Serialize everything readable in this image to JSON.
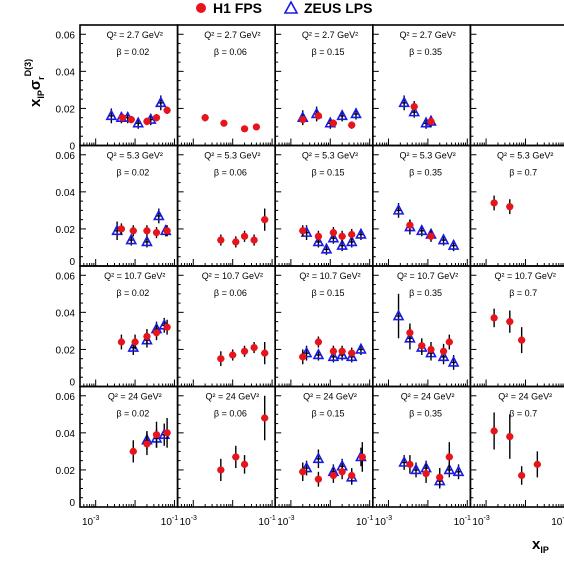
{
  "chart_data": {
    "type": "scatter",
    "legend": [
      {
        "name": "H1 FPS",
        "marker": "filled-circle",
        "color": "#e8141c"
      },
      {
        "name": "ZEUS LPS",
        "marker": "open-triangle",
        "color": "#1a1ae6"
      }
    ],
    "legend_placement": "top-center",
    "ylabel": {
      "main": "x",
      "sub1": "IP",
      "sigma": "σ",
      "sub2": "r",
      "sup": "D(3)"
    },
    "xlabel": {
      "main": "x",
      "sub": "IP"
    },
    "xscale": "log",
    "xlim": [
      0.0004,
      0.12
    ],
    "ylim": [
      0,
      0.065
    ],
    "yticks": [
      "0",
      "0.02",
      "0.04",
      "0.06"
    ],
    "xticks": [
      {
        "base": "10",
        "exp": "-3"
      },
      {
        "base": "10",
        "exp": "-1"
      }
    ],
    "grid": false,
    "rows": [
      {
        "q2_label": "Q² = 2.7 GeV²",
        "panels": [
          {
            "beta_label": "β = 0.02",
            "h1": [
              [
                0.0048,
                0.015,
                0.002
              ],
              [
                0.008,
                0.014,
                0.002
              ],
              [
                0.02,
                0.013,
                0.002
              ],
              [
                0.035,
                0.015,
                0.002
              ],
              [
                0.065,
                0.019,
                0.002
              ]
            ],
            "zeus": [
              [
                0.0025,
                0.016,
                0.004
              ],
              [
                0.0045,
                0.015,
                0.003
              ],
              [
                0.0065,
                0.015,
                0.003
              ],
              [
                0.012,
                0.012,
                0.003
              ],
              [
                0.025,
                0.014,
                0.003
              ],
              [
                0.045,
                0.023,
                0.004
              ]
            ]
          },
          {
            "beta_label": "β = 0.06",
            "h1": [
              [
                0.002,
                0.015,
                0.002
              ],
              [
                0.006,
                0.012,
                0.0015
              ],
              [
                0.02,
                0.009,
                0.0015
              ],
              [
                0.04,
                0.01,
                0.0015
              ]
            ],
            "zeus": []
          },
          {
            "beta_label": "β = 0.15",
            "h1": [
              [
                0.002,
                0.014,
                0.002
              ],
              [
                0.005,
                0.016,
                0.002
              ],
              [
                0.012,
                0.012,
                0.002
              ],
              [
                0.035,
                0.011,
                0.002
              ]
            ],
            "zeus": [
              [
                0.002,
                0.015,
                0.004
              ],
              [
                0.0045,
                0.017,
                0.004
              ],
              [
                0.01,
                0.012,
                0.003
              ],
              [
                0.02,
                0.016,
                0.003
              ],
              [
                0.045,
                0.017,
                0.003
              ]
            ]
          },
          {
            "beta_label": "β = 0.35",
            "h1": [
              [
                0.0045,
                0.021,
                0.003
              ],
              [
                0.012,
                0.013,
                0.002
              ]
            ],
            "zeus": [
              [
                0.0025,
                0.023,
                0.004
              ],
              [
                0.0045,
                0.018,
                0.003
              ],
              [
                0.009,
                0.012,
                0.003
              ],
              [
                0.012,
                0.013,
                0.003
              ]
            ]
          },
          {
            "beta_label": null,
            "h1": [],
            "zeus": []
          }
        ]
      },
      {
        "q2_label": "Q² = 5.3 GeV²",
        "panels": [
          {
            "beta_label": "β = 0.02",
            "h1": [
              [
                0.0045,
                0.02,
                0.003
              ],
              [
                0.009,
                0.019,
                0.003
              ],
              [
                0.02,
                0.019,
                0.003
              ],
              [
                0.035,
                0.018,
                0.003
              ],
              [
                0.065,
                0.019,
                0.003
              ]
            ],
            "zeus": [
              [
                0.0035,
                0.019,
                0.005
              ],
              [
                0.008,
                0.014,
                0.003
              ],
              [
                0.02,
                0.013,
                0.003
              ],
              [
                0.04,
                0.027,
                0.004
              ],
              [
                0.06,
                0.019,
                0.003
              ]
            ]
          },
          {
            "beta_label": "β = 0.06",
            "h1": [
              [
                0.005,
                0.014,
                0.003
              ],
              [
                0.012,
                0.013,
                0.003
              ],
              [
                0.02,
                0.016,
                0.003
              ],
              [
                0.035,
                0.014,
                0.003
              ],
              [
                0.065,
                0.025,
                0.006
              ]
            ],
            "zeus": []
          },
          {
            "beta_label": "β = 0.15",
            "h1": [
              [
                0.002,
                0.019,
                0.003
              ],
              [
                0.005,
                0.016,
                0.003
              ],
              [
                0.012,
                0.018,
                0.003
              ],
              [
                0.02,
                0.016,
                0.003
              ],
              [
                0.035,
                0.017,
                0.003
              ]
            ],
            "zeus": [
              [
                0.0025,
                0.018,
                0.004
              ],
              [
                0.005,
                0.013,
                0.003
              ],
              [
                0.008,
                0.009,
                0.003
              ],
              [
                0.012,
                0.015,
                0.003
              ],
              [
                0.02,
                0.011,
                0.003
              ],
              [
                0.035,
                0.013,
                0.003
              ],
              [
                0.06,
                0.017,
                0.003
              ]
            ]
          },
          {
            "beta_label": "β = 0.35",
            "h1": [
              [
                0.0035,
                0.022,
                0.003
              ],
              [
                0.012,
                0.016,
                0.003
              ]
            ],
            "zeus": [
              [
                0.0018,
                0.03,
                0.004
              ],
              [
                0.0035,
                0.021,
                0.004
              ],
              [
                0.007,
                0.019,
                0.003
              ],
              [
                0.012,
                0.017,
                0.003
              ],
              [
                0.025,
                0.014,
                0.003
              ],
              [
                0.045,
                0.011,
                0.003
              ]
            ]
          },
          {
            "beta_label": "β = 0.7",
            "h1": [
              [
                0.0016,
                0.034,
                0.004
              ],
              [
                0.004,
                0.032,
                0.004
              ]
            ],
            "zeus": []
          }
        ]
      },
      {
        "q2_label": "Q² = 10.7 GeV²",
        "panels": [
          {
            "beta_label": "β = 0.02",
            "h1": [
              [
                0.0045,
                0.024,
                0.004
              ],
              [
                0.01,
                0.024,
                0.004
              ],
              [
                0.02,
                0.027,
                0.004
              ],
              [
                0.035,
                0.029,
                0.004
              ],
              [
                0.065,
                0.032,
                0.004
              ]
            ],
            "zeus": [
              [
                0.009,
                0.021,
                0.004
              ],
              [
                0.02,
                0.025,
                0.004
              ],
              [
                0.035,
                0.031,
                0.004
              ],
              [
                0.055,
                0.033,
                0.004
              ]
            ]
          },
          {
            "beta_label": "β = 0.06",
            "h1": [
              [
                0.005,
                0.015,
                0.004
              ],
              [
                0.01,
                0.017,
                0.003
              ],
              [
                0.02,
                0.019,
                0.003
              ],
              [
                0.035,
                0.021,
                0.003
              ],
              [
                0.065,
                0.018,
                0.006
              ]
            ],
            "zeus": []
          },
          {
            "beta_label": "β = 0.15",
            "h1": [
              [
                0.002,
                0.016,
                0.004
              ],
              [
                0.005,
                0.024,
                0.003
              ],
              [
                0.012,
                0.019,
                0.003
              ],
              [
                0.02,
                0.019,
                0.003
              ],
              [
                0.035,
                0.018,
                0.003
              ]
            ],
            "zeus": [
              [
                0.0025,
                0.018,
                0.004
              ],
              [
                0.005,
                0.017,
                0.003
              ],
              [
                0.012,
                0.016,
                0.003
              ],
              [
                0.02,
                0.017,
                0.003
              ],
              [
                0.035,
                0.016,
                0.003
              ],
              [
                0.06,
                0.02,
                0.003
              ]
            ]
          },
          {
            "beta_label": "β = 0.35",
            "h1": [
              [
                0.0035,
                0.029,
                0.005
              ],
              [
                0.007,
                0.022,
                0.004
              ],
              [
                0.012,
                0.02,
                0.004
              ],
              [
                0.025,
                0.019,
                0.004
              ],
              [
                0.035,
                0.024,
                0.004
              ]
            ],
            "zeus": [
              [
                0.0018,
                0.038,
                0.012
              ],
              [
                0.0035,
                0.026,
                0.006
              ],
              [
                0.007,
                0.021,
                0.004
              ],
              [
                0.012,
                0.018,
                0.004
              ],
              [
                0.025,
                0.016,
                0.004
              ],
              [
                0.045,
                0.013,
                0.004
              ]
            ]
          },
          {
            "beta_label": "β = 0.7",
            "h1": [
              [
                0.0016,
                0.037,
                0.005
              ],
              [
                0.004,
                0.035,
                0.006
              ],
              [
                0.008,
                0.025,
                0.007
              ]
            ],
            "zeus": []
          }
        ]
      },
      {
        "q2_label": "Q² = 24 GeV²",
        "panels": [
          {
            "beta_label": "β = 0.02",
            "h1": [
              [
                0.009,
                0.03,
                0.006
              ],
              [
                0.02,
                0.034,
                0.006
              ],
              [
                0.035,
                0.039,
                0.007
              ],
              [
                0.065,
                0.04,
                0.008
              ]
            ],
            "zeus": [
              [
                0.02,
                0.036,
                0.005
              ],
              [
                0.035,
                0.037,
                0.005
              ],
              [
                0.055,
                0.039,
                0.006
              ]
            ]
          },
          {
            "beta_label": "β = 0.06",
            "h1": [
              [
                0.005,
                0.02,
                0.006
              ],
              [
                0.012,
                0.027,
                0.006
              ],
              [
                0.02,
                0.023,
                0.005
              ],
              [
                0.065,
                0.048,
                0.012
              ]
            ],
            "zeus": []
          },
          {
            "beta_label": "β = 0.15",
            "h1": [
              [
                0.002,
                0.019,
                0.005
              ],
              [
                0.005,
                0.015,
                0.004
              ],
              [
                0.012,
                0.017,
                0.004
              ],
              [
                0.02,
                0.019,
                0.004
              ],
              [
                0.035,
                0.017,
                0.004
              ],
              [
                0.065,
                0.027,
                0.008
              ]
            ],
            "zeus": [
              [
                0.0025,
                0.021,
                0.004
              ],
              [
                0.005,
                0.026,
                0.005
              ],
              [
                0.012,
                0.019,
                0.004
              ],
              [
                0.02,
                0.022,
                0.004
              ],
              [
                0.035,
                0.016,
                0.004
              ],
              [
                0.06,
                0.027,
                0.005
              ]
            ]
          },
          {
            "beta_label": "β = 0.35",
            "h1": [
              [
                0.0035,
                0.023,
                0.005
              ],
              [
                0.009,
                0.018,
                0.005
              ],
              [
                0.02,
                0.016,
                0.005
              ],
              [
                0.035,
                0.027,
                0.008
              ]
            ],
            "zeus": [
              [
                0.0025,
                0.024,
                0.004
              ],
              [
                0.005,
                0.02,
                0.004
              ],
              [
                0.009,
                0.021,
                0.004
              ],
              [
                0.02,
                0.014,
                0.004
              ],
              [
                0.035,
                0.02,
                0.004
              ],
              [
                0.06,
                0.019,
                0.004
              ]
            ]
          },
          {
            "beta_label": "β = 0.7",
            "h1": [
              [
                0.0016,
                0.041,
                0.01
              ],
              [
                0.004,
                0.038,
                0.012
              ],
              [
                0.008,
                0.017,
                0.005
              ],
              [
                0.02,
                0.023,
                0.007
              ]
            ],
            "zeus": []
          }
        ]
      }
    ]
  }
}
